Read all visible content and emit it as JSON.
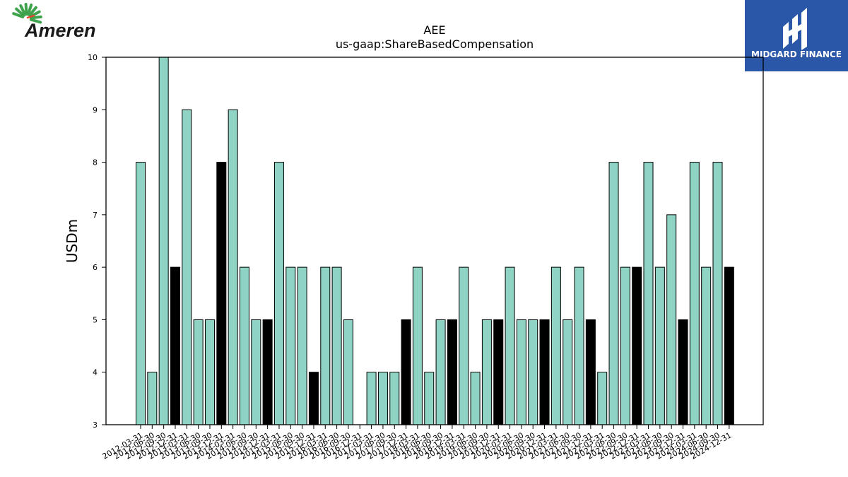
{
  "brand": {
    "company_logo_text": "Ameren",
    "partner_logo_text": "MIDGARD FINANCE"
  },
  "colors": {
    "bar_default": "#8fd3c4",
    "bar_highlight": "#000000",
    "midgard_bg": "#2b57a8"
  },
  "chart_data": {
    "type": "bar",
    "title": "AEE",
    "subtitle": "us-gaap:ShareBasedCompensation",
    "xlabel": "",
    "ylabel": "USDm",
    "ylim": [
      3,
      10
    ],
    "yticks": [
      3,
      4,
      5,
      6,
      7,
      8,
      9,
      10
    ],
    "grid": false,
    "categories": [
      "2012-03-31",
      "2012-06-30",
      "2012-09-30",
      "2012-12-31",
      "2013-03-31",
      "2013-06-30",
      "2013-09-30",
      "2013-12-31",
      "2014-03-31",
      "2014-06-30",
      "2014-09-30",
      "2014-12-31",
      "2015-03-31",
      "2015-06-30",
      "2015-09-30",
      "2015-12-31",
      "2016-03-31",
      "2016-06-30",
      "2016-09-30",
      "2016-12-31",
      "2017-03-31",
      "2017-06-30",
      "2017-09-30",
      "2017-12-31",
      "2018-03-31",
      "2018-06-30",
      "2018-09-30",
      "2018-12-31",
      "2019-03-31",
      "2019-06-30",
      "2019-09-30",
      "2019-12-31",
      "2020-03-31",
      "2020-06-30",
      "2020-09-30",
      "2020-12-31",
      "2021-03-31",
      "2021-06-30",
      "2021-09-30",
      "2021-12-31",
      "2022-03-31",
      "2022-06-30",
      "2022-09-30",
      "2022-12-31",
      "2023-03-31",
      "2023-06-30",
      "2023-09-30",
      "2023-12-31",
      "2024-03-31",
      "2024-06-30",
      "2024-09-30",
      "2024-12-31"
    ],
    "values": [
      8,
      4,
      10,
      6,
      9,
      5,
      5,
      8,
      9,
      6,
      5,
      5,
      8,
      6,
      6,
      4,
      6,
      6,
      5,
      null,
      4,
      4,
      4,
      5,
      6,
      4,
      5,
      5,
      6,
      4,
      5,
      5,
      6,
      5,
      5,
      5,
      6,
      5,
      6,
      5,
      4,
      8,
      6,
      6,
      8,
      6,
      7,
      5,
      8,
      6,
      8,
      6
    ]
  }
}
